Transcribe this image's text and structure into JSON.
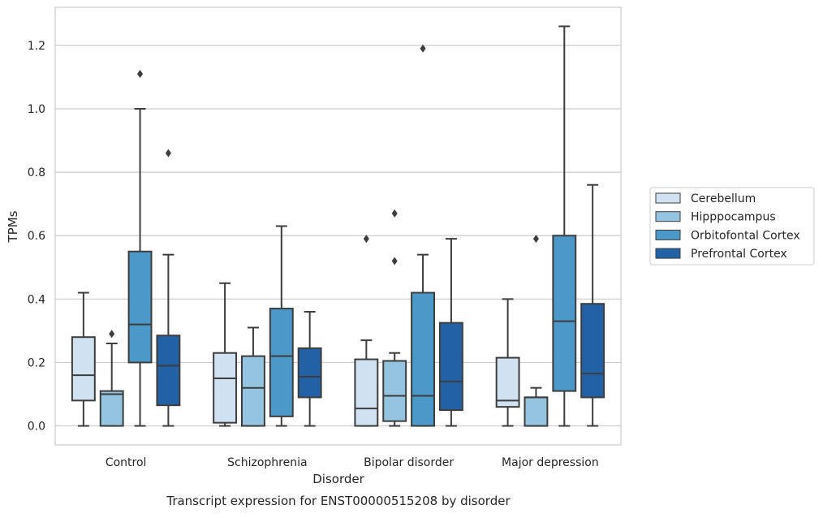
{
  "chart_data": {
    "type": "box",
    "caption": "Transcript expression for ENST00000515208 by disorder",
    "xlabel": "Disorder",
    "ylabel": "TPMs",
    "ylim": [
      -0.06,
      1.32
    ],
    "yticks": [
      0.0,
      0.2,
      0.4,
      0.6,
      0.8,
      1.0,
      1.2
    ],
    "ytick_labels": [
      "0.0",
      "0.2",
      "0.4",
      "0.6",
      "0.8",
      "1.0",
      "1.2"
    ],
    "grid": "horizontal",
    "legend_position": "right",
    "categories": [
      "Control",
      "Schizophrenia",
      "Bipolar disorder",
      "Major depression"
    ],
    "series": [
      {
        "name": "Cerebellum",
        "color": "#d0e1f2",
        "boxes": [
          {
            "q1": 0.08,
            "median": 0.16,
            "q3": 0.28,
            "whisker_low": 0.0,
            "whisker_high": 0.42,
            "outliers": []
          },
          {
            "q1": 0.01,
            "median": 0.15,
            "q3": 0.23,
            "whisker_low": 0.0,
            "whisker_high": 0.45,
            "outliers": []
          },
          {
            "q1": 0.0,
            "median": 0.055,
            "q3": 0.21,
            "whisker_low": 0.0,
            "whisker_high": 0.27,
            "outliers": [
              0.59
            ]
          },
          {
            "q1": 0.06,
            "median": 0.08,
            "q3": 0.215,
            "whisker_low": 0.0,
            "whisker_high": 0.4,
            "outliers": []
          }
        ]
      },
      {
        "name": "Hipppocampus",
        "color": "#94c4df",
        "boxes": [
          {
            "q1": 0.0,
            "median": 0.1,
            "q3": 0.11,
            "whisker_low": 0.0,
            "whisker_high": 0.26,
            "outliers": [
              0.29
            ]
          },
          {
            "q1": 0.0,
            "median": 0.12,
            "q3": 0.22,
            "whisker_low": 0.0,
            "whisker_high": 0.31,
            "outliers": []
          },
          {
            "q1": 0.015,
            "median": 0.095,
            "q3": 0.205,
            "whisker_low": 0.0,
            "whisker_high": 0.23,
            "outliers": [
              0.52,
              0.67
            ]
          },
          {
            "q1": 0.0,
            "median": 0.09,
            "q3": 0.09,
            "whisker_low": 0.0,
            "whisker_high": 0.12,
            "outliers": [
              0.59
            ]
          }
        ]
      },
      {
        "name": "Orbitofontal Cortex",
        "color": "#4b98c9",
        "boxes": [
          {
            "q1": 0.2,
            "median": 0.32,
            "q3": 0.55,
            "whisker_low": 0.0,
            "whisker_high": 1.0,
            "outliers": [
              1.11
            ]
          },
          {
            "q1": 0.03,
            "median": 0.22,
            "q3": 0.37,
            "whisker_low": 0.0,
            "whisker_high": 0.63,
            "outliers": []
          },
          {
            "q1": 0.0,
            "median": 0.095,
            "q3": 0.42,
            "whisker_low": 0.0,
            "whisker_high": 0.54,
            "outliers": [
              1.19
            ]
          },
          {
            "q1": 0.11,
            "median": 0.33,
            "q3": 0.6,
            "whisker_low": 0.0,
            "whisker_high": 1.26,
            "outliers": []
          }
        ]
      },
      {
        "name": "Prefrontal Cortex",
        "color": "#2261a6",
        "boxes": [
          {
            "q1": 0.065,
            "median": 0.19,
            "q3": 0.285,
            "whisker_low": 0.0,
            "whisker_high": 0.54,
            "outliers": [
              0.86
            ]
          },
          {
            "q1": 0.09,
            "median": 0.155,
            "q3": 0.245,
            "whisker_low": 0.0,
            "whisker_high": 0.36,
            "outliers": []
          },
          {
            "q1": 0.05,
            "median": 0.14,
            "q3": 0.325,
            "whisker_low": 0.0,
            "whisker_high": 0.59,
            "outliers": []
          },
          {
            "q1": 0.09,
            "median": 0.165,
            "q3": 0.385,
            "whisker_low": 0.0,
            "whisker_high": 0.76,
            "outliers": []
          }
        ]
      }
    ]
  }
}
